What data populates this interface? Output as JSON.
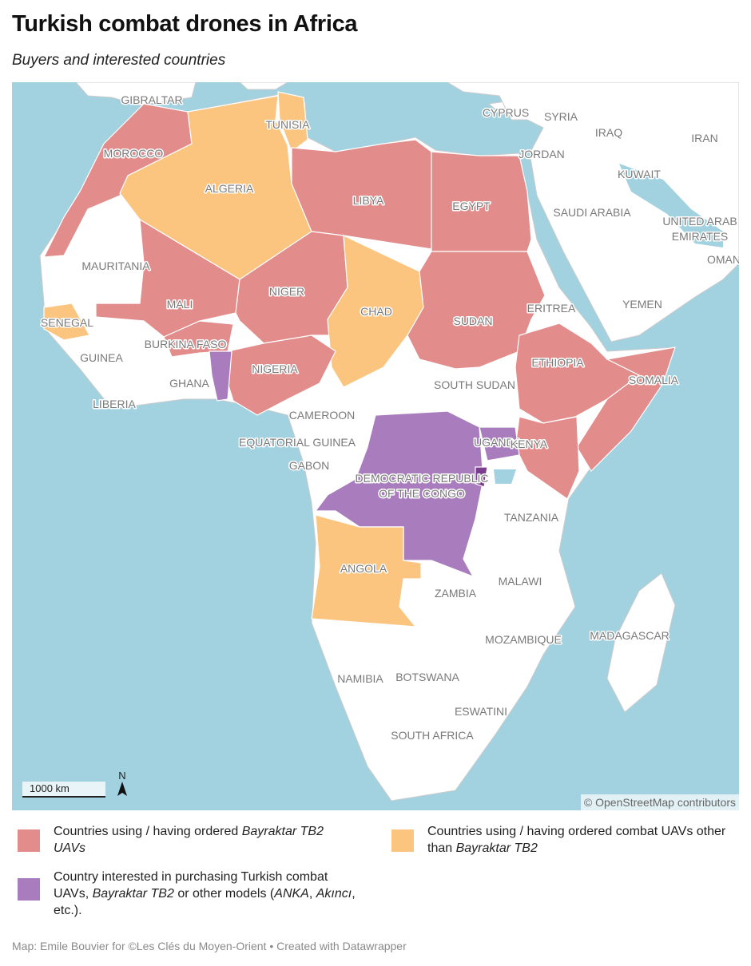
{
  "title": "Turkish combat drones in Africa",
  "subtitle": "Buyers and interested countries",
  "colors": {
    "ocean": "#a2d1e0",
    "land": "#ffffff",
    "border": "#cccccc",
    "bayraktar": "#e28d8b",
    "other_uav": "#fbc57f",
    "interested": "#a97dbd",
    "interested_dark": "#7b3d8f"
  },
  "map": {
    "labels": [
      "GIBRALTAR",
      "CYPRUS",
      "SYRIA",
      "IRAQ",
      "IRAN",
      "TUNISIA",
      "JORDAN",
      "KUWAIT",
      "MOROCCO",
      "ALGERIA",
      "LIBYA",
      "EGYPT",
      "SAUDI ARABIA",
      "UNITED ARAB",
      "EMIRATES",
      "OMAN",
      "MAURITANIA",
      "NIGER",
      "MALI",
      "CHAD",
      "YEMEN",
      "ERITREA",
      "SUDAN",
      "SENEGAL",
      "BURKINA FASO",
      "GUINEA",
      "ETHIOPIA",
      "SOMALIA",
      "NIGERIA",
      "GHANA",
      "SOUTH SUDAN",
      "LIBERIA",
      "CAMEROON",
      "EQUATORIAL GUINEA",
      "UGANDA",
      "KENYA",
      "GABON",
      "DEMOCRATIC REPUBLIC",
      "OF THE CONGO",
      "TANZANIA",
      "ANGOLA",
      "MALAWI",
      "ZAMBIA",
      "MADAGASCAR",
      "MOZAMBIQUE",
      "NAMIBIA",
      "BOTSWANA",
      "ESWATINI",
      "SOUTH AFRICA"
    ],
    "scale_label": "1000 km",
    "north_label": "N",
    "attribution": "© OpenStreetMap contributors"
  },
  "legend": [
    {
      "text": "Countries using / having ordered ",
      "italic": "Bayraktar TB2",
      "text2": " UAVs",
      "color": "#e28d8b"
    },
    {
      "text": "Countries using / having ordered combat UAVs other than ",
      "italic": "Bayraktar TB2",
      "color": "#fbc57f"
    },
    {
      "text": "Country interested in purchasing Turkish combat UAVs, ",
      "italic": "Bayraktar TB2",
      "text2": " or other models (",
      "italic2": "ANKA",
      "text3": ", ",
      "italic3": "Akıncı",
      "text4": ", etc.).",
      "color": "#a97dbd"
    }
  ],
  "footer": "Map: Emile Bouvier for ©Les Clés du Moyen-Orient • Created with Datawrapper"
}
